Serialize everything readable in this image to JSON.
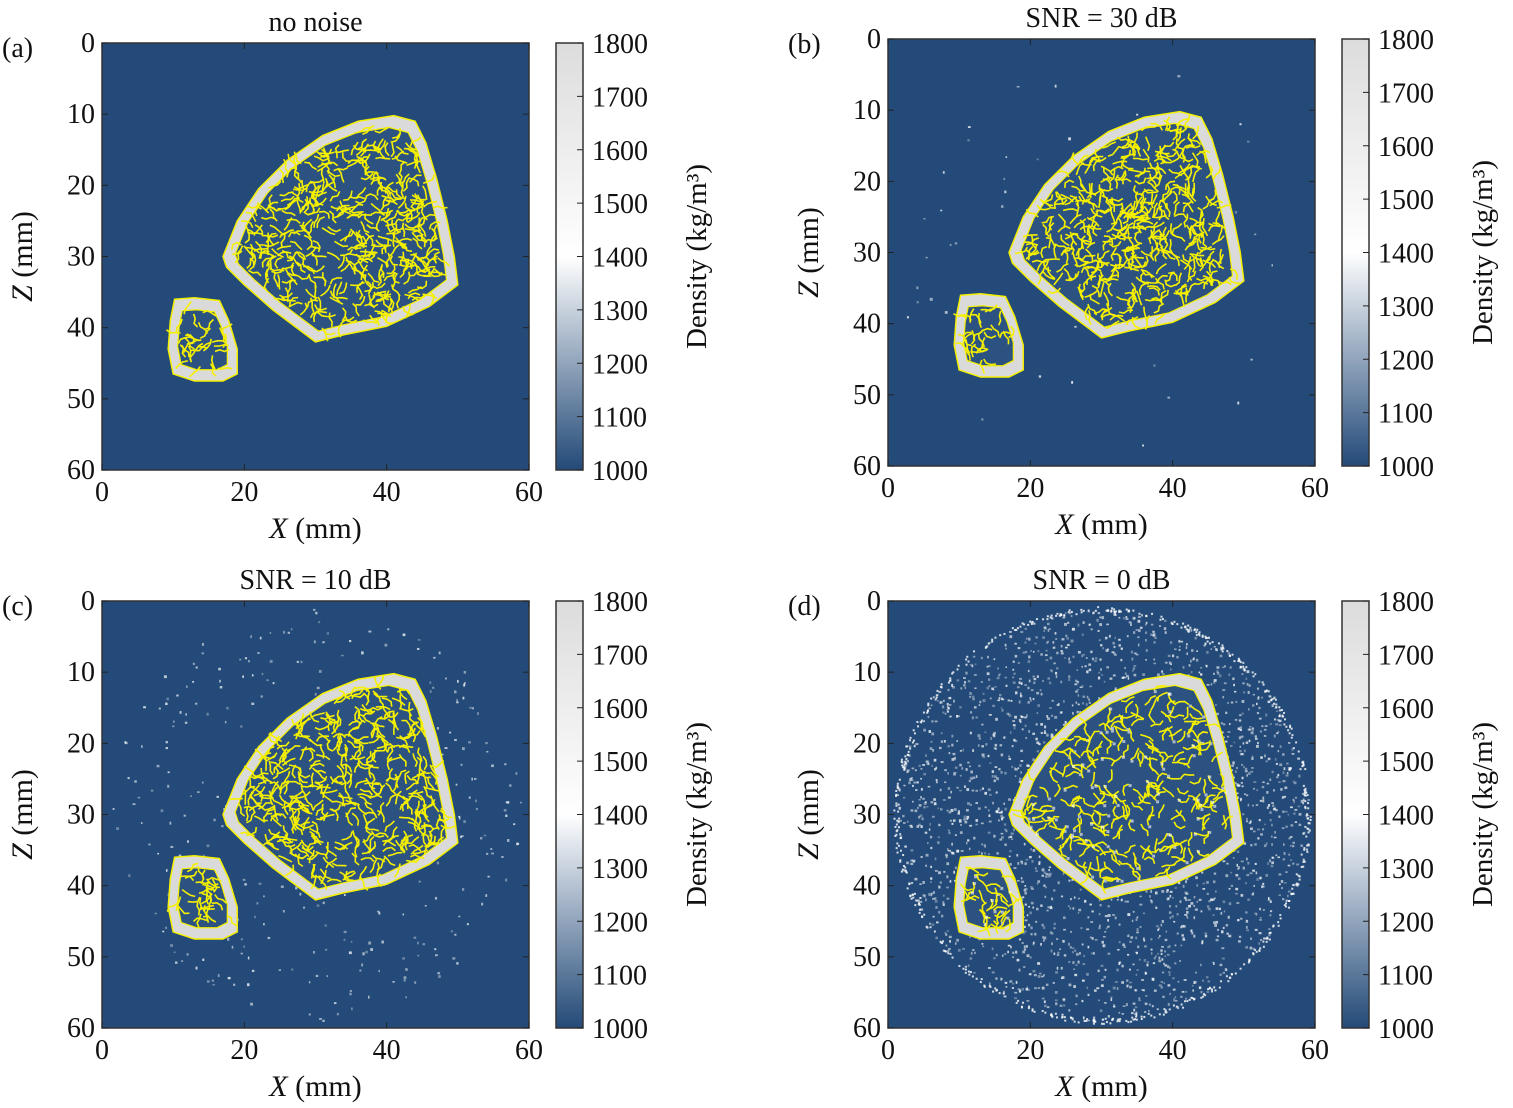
{
  "chart_data": [
    {
      "type": "heatmap",
      "panel_label": "(a)",
      "title": "no noise",
      "xlabel_var": "X",
      "xlabel_unit": " (mm)",
      "ylabel_var": "Z",
      "ylabel_unit": " (mm)",
      "xlim": [
        0,
        60
      ],
      "ylim": [
        0,
        60
      ],
      "xticks": [
        "0",
        "20",
        "40",
        "60"
      ],
      "yticks": [
        "0",
        "10",
        "20",
        "30",
        "40",
        "50",
        "60"
      ],
      "colorbar": {
        "label": "Density (kg/m³)",
        "range": [
          1000,
          1800
        ],
        "ticks": [
          "1000",
          "1100",
          "1200",
          "1300",
          "1400",
          "1500",
          "1600",
          "1700",
          "1800"
        ]
      },
      "noise_level": 0
    },
    {
      "type": "heatmap",
      "panel_label": "(b)",
      "title": "SNR = 30 dB",
      "xlabel_var": "X",
      "xlabel_unit": " (mm)",
      "ylabel_var": "Z",
      "ylabel_unit": " (mm)",
      "xlim": [
        0,
        60
      ],
      "ylim": [
        0,
        60
      ],
      "xticks": [
        "0",
        "20",
        "40",
        "60"
      ],
      "yticks": [
        "0",
        "10",
        "20",
        "30",
        "40",
        "50",
        "60"
      ],
      "colorbar": {
        "label": "Density (kg/m³)",
        "range": [
          1000,
          1800
        ],
        "ticks": [
          "1000",
          "1100",
          "1200",
          "1300",
          "1400",
          "1500",
          "1600",
          "1700",
          "1800"
        ]
      },
      "noise_level": 0.02
    },
    {
      "type": "heatmap",
      "panel_label": "(c)",
      "title": "SNR = 10 dB",
      "xlabel_var": "X",
      "xlabel_unit": " (mm)",
      "ylabel_var": "Z",
      "ylabel_unit": " (mm)",
      "xlim": [
        0,
        60
      ],
      "ylim": [
        0,
        60
      ],
      "xticks": [
        "0",
        "20",
        "40",
        "60"
      ],
      "yticks": [
        "0",
        "10",
        "20",
        "30",
        "40",
        "50",
        "60"
      ],
      "colorbar": {
        "label": "Density (kg/m³)",
        "range": [
          1000,
          1800
        ],
        "ticks": [
          "1000",
          "1100",
          "1200",
          "1300",
          "1400",
          "1500",
          "1600",
          "1700",
          "1800"
        ]
      },
      "noise_level": 0.15
    },
    {
      "type": "heatmap",
      "panel_label": "(d)",
      "title": "SNR = 0 dB",
      "xlabel_var": "X",
      "xlabel_unit": " (mm)",
      "ylabel_var": "Z",
      "ylabel_unit": " (mm)",
      "xlim": [
        0,
        60
      ],
      "ylim": [
        0,
        60
      ],
      "xticks": [
        "0",
        "20",
        "40",
        "60"
      ],
      "yticks": [
        "0",
        "10",
        "20",
        "30",
        "40",
        "50",
        "60"
      ],
      "colorbar": {
        "label": "Density (kg/m³)",
        "range": [
          1000,
          1800
        ],
        "ticks": [
          "1000",
          "1100",
          "1200",
          "1300",
          "1400",
          "1500",
          "1600",
          "1700",
          "1800"
        ]
      },
      "noise_level": 1
    }
  ],
  "colors": {
    "background": "#234a78",
    "bone": "#dadada",
    "contour": "#f5f000",
    "colorbar_mid": "#ffffff"
  }
}
